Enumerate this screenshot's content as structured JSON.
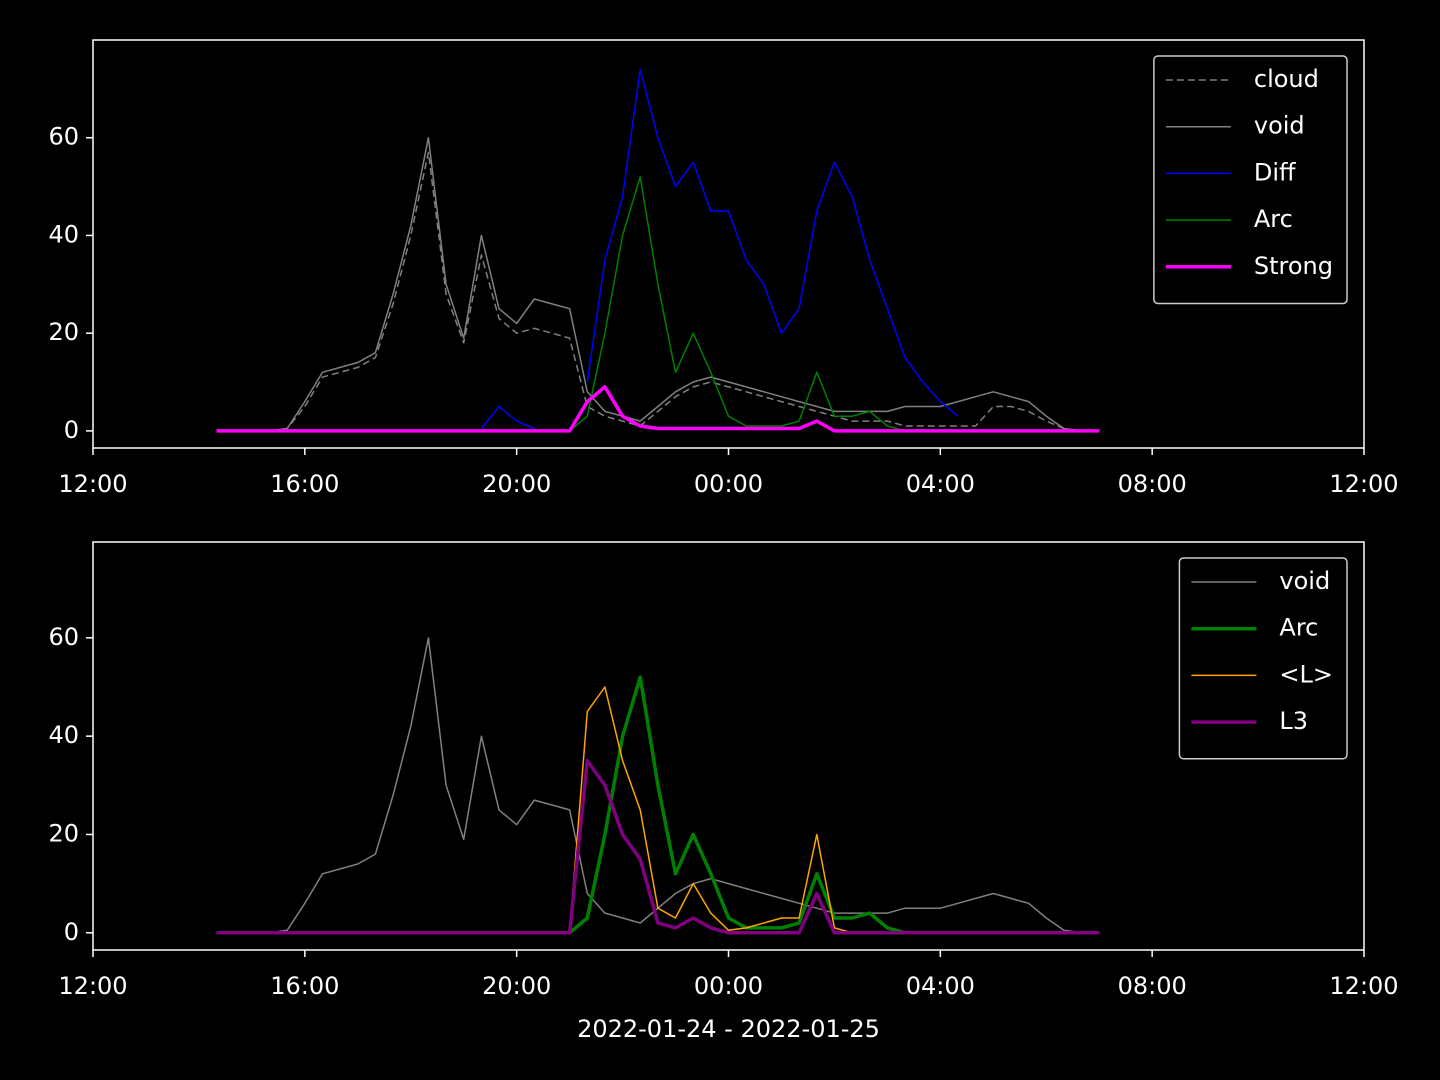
{
  "chart_data": [
    {
      "type": "line",
      "x": [
        "2022-01-24T14:20",
        "2022-01-24T14:40",
        "2022-01-24T15:00",
        "2022-01-24T15:20",
        "2022-01-24T15:40",
        "2022-01-24T16:00",
        "2022-01-24T16:20",
        "2022-01-24T16:40",
        "2022-01-24T17:00",
        "2022-01-24T17:20",
        "2022-01-24T17:40",
        "2022-01-24T18:00",
        "2022-01-24T18:20",
        "2022-01-24T18:40",
        "2022-01-24T19:00",
        "2022-01-24T19:20",
        "2022-01-24T19:40",
        "2022-01-24T20:00",
        "2022-01-24T20:20",
        "2022-01-24T20:40",
        "2022-01-24T21:00",
        "2022-01-24T21:20",
        "2022-01-24T21:40",
        "2022-01-24T22:00",
        "2022-01-24T22:20",
        "2022-01-24T22:40",
        "2022-01-24T23:00",
        "2022-01-24T23:20",
        "2022-01-24T23:40",
        "2022-01-25T00:00",
        "2022-01-25T00:20",
        "2022-01-25T00:40",
        "2022-01-25T01:00",
        "2022-01-25T01:20",
        "2022-01-25T01:40",
        "2022-01-25T02:00",
        "2022-01-25T02:20",
        "2022-01-25T02:40",
        "2022-01-25T03:00",
        "2022-01-25T03:20",
        "2022-01-25T03:40",
        "2022-01-25T04:00",
        "2022-01-25T04:20",
        "2022-01-25T04:40",
        "2022-01-25T05:00",
        "2022-01-25T05:20",
        "2022-01-25T05:40",
        "2022-01-25T06:00",
        "2022-01-25T06:20",
        "2022-01-25T06:40",
        "2022-01-25T07:00"
      ],
      "series": [
        {
          "name": "cloud",
          "color": "#808080",
          "linestyle": "dashed",
          "linewidth": 1.5,
          "values": [
            0,
            0,
            0,
            0,
            0.5,
            5,
            11,
            12,
            13,
            15,
            26,
            40,
            57,
            28,
            18,
            36,
            23,
            20,
            21,
            20,
            19,
            5,
            3,
            2,
            1,
            4,
            7,
            9,
            10,
            9,
            8,
            7,
            6,
            5,
            4,
            3,
            2,
            2,
            2,
            1,
            1,
            1,
            1,
            1,
            5,
            5,
            4,
            2,
            0.5,
            0,
            0
          ]
        },
        {
          "name": "void",
          "color": "#808080",
          "linestyle": "solid",
          "linewidth": 1.5,
          "values": [
            0,
            0,
            0,
            0,
            0.5,
            6,
            12,
            13,
            14,
            16,
            28,
            42,
            60,
            30,
            19,
            40,
            25,
            22,
            27,
            26,
            25,
            8,
            4,
            3,
            2,
            5,
            8,
            10,
            11,
            10,
            9,
            8,
            7,
            6,
            5,
            4,
            4,
            4,
            4,
            5,
            5,
            5,
            6,
            7,
            8,
            7,
            6,
            3,
            0.5,
            0,
            0
          ]
        },
        {
          "name": "Diff",
          "color": "#0000ff",
          "linestyle": "solid",
          "linewidth": 1.5,
          "values": [
            null,
            null,
            null,
            null,
            null,
            null,
            null,
            null,
            null,
            null,
            null,
            null,
            null,
            null,
            null,
            0.5,
            5,
            2,
            0.5,
            null,
            null,
            10,
            35,
            48,
            74,
            60,
            50,
            55,
            45,
            45,
            35,
            30,
            20,
            25,
            45,
            55,
            48,
            35,
            25,
            15,
            10,
            6,
            3,
            null,
            null,
            null,
            null,
            null,
            null,
            null,
            null
          ]
        },
        {
          "name": "Arc",
          "color": "#008000",
          "linestyle": "solid",
          "linewidth": 1.5,
          "values": [
            0,
            0,
            0,
            0,
            0,
            0,
            0,
            0,
            0,
            0,
            0,
            0,
            0,
            0,
            0,
            0,
            0,
            0,
            0,
            0,
            0,
            3,
            20,
            40,
            52,
            30,
            12,
            20,
            12,
            3,
            1,
            1,
            1,
            2,
            12,
            3,
            3,
            4,
            1,
            0,
            0,
            0,
            0,
            0,
            0,
            0,
            0,
            0,
            0,
            0,
            0
          ]
        },
        {
          "name": "Strong",
          "color": "#ff00ff",
          "linestyle": "solid",
          "linewidth": 3.5,
          "values": [
            0,
            0,
            0,
            0,
            0,
            0,
            0,
            0,
            0,
            0,
            0,
            0,
            0,
            0,
            0,
            0,
            0,
            0,
            0,
            0,
            0,
            6,
            9,
            3,
            1,
            0.5,
            0.5,
            0.5,
            0.5,
            0.5,
            0.5,
            0.5,
            0.5,
            0.5,
            2,
            0,
            0,
            0,
            0,
            0,
            0,
            0,
            0,
            0,
            0,
            0,
            0,
            0,
            0,
            0,
            0
          ]
        }
      ],
      "xlim": [
        "2022-01-24T12:00",
        "2022-01-25T12:00"
      ],
      "xticks": [
        {
          "value": "2022-01-24T12:00",
          "label": "12:00"
        },
        {
          "value": "2022-01-24T16:00",
          "label": "16:00"
        },
        {
          "value": "2022-01-24T20:00",
          "label": "20:00"
        },
        {
          "value": "2022-01-25T00:00",
          "label": "00:00"
        },
        {
          "value": "2022-01-25T04:00",
          "label": "04:00"
        },
        {
          "value": "2022-01-25T08:00",
          "label": "08:00"
        },
        {
          "value": "2022-01-25T12:00",
          "label": "12:00"
        }
      ],
      "ylim": [
        -3.5,
        80
      ],
      "yticks": [
        0,
        20,
        40,
        60
      ],
      "legend": "upper right"
    },
    {
      "type": "line",
      "x": [
        "2022-01-24T14:20",
        "2022-01-24T14:40",
        "2022-01-24T15:00",
        "2022-01-24T15:20",
        "2022-01-24T15:40",
        "2022-01-24T16:00",
        "2022-01-24T16:20",
        "2022-01-24T16:40",
        "2022-01-24T17:00",
        "2022-01-24T17:20",
        "2022-01-24T17:40",
        "2022-01-24T18:00",
        "2022-01-24T18:20",
        "2022-01-24T18:40",
        "2022-01-24T19:00",
        "2022-01-24T19:20",
        "2022-01-24T19:40",
        "2022-01-24T20:00",
        "2022-01-24T20:20",
        "2022-01-24T20:40",
        "2022-01-24T21:00",
        "2022-01-24T21:20",
        "2022-01-24T21:40",
        "2022-01-24T22:00",
        "2022-01-24T22:20",
        "2022-01-24T22:40",
        "2022-01-24T23:00",
        "2022-01-24T23:20",
        "2022-01-24T23:40",
        "2022-01-25T00:00",
        "2022-01-25T00:20",
        "2022-01-25T00:40",
        "2022-01-25T01:00",
        "2022-01-25T01:20",
        "2022-01-25T01:40",
        "2022-01-25T02:00",
        "2022-01-25T02:20",
        "2022-01-25T02:40",
        "2022-01-25T03:00",
        "2022-01-25T03:20",
        "2022-01-25T03:40",
        "2022-01-25T04:00",
        "2022-01-25T04:20",
        "2022-01-25T04:40",
        "2022-01-25T05:00",
        "2022-01-25T05:20",
        "2022-01-25T05:40",
        "2022-01-25T06:00",
        "2022-01-25T06:20",
        "2022-01-25T06:40",
        "2022-01-25T07:00"
      ],
      "series": [
        {
          "name": "void",
          "color": "#808080",
          "linestyle": "solid",
          "linewidth": 1.5,
          "values": [
            0,
            0,
            0,
            0,
            0.5,
            6,
            12,
            13,
            14,
            16,
            28,
            42,
            60,
            30,
            19,
            40,
            25,
            22,
            27,
            26,
            25,
            8,
            4,
            3,
            2,
            5,
            8,
            10,
            11,
            10,
            9,
            8,
            7,
            6,
            5,
            4,
            4,
            4,
            4,
            5,
            5,
            5,
            6,
            7,
            8,
            7,
            6,
            3,
            0.5,
            0,
            0
          ]
        },
        {
          "name": "Arc",
          "color": "#008000",
          "linestyle": "solid",
          "linewidth": 3.5,
          "values": [
            0,
            0,
            0,
            0,
            0,
            0,
            0,
            0,
            0,
            0,
            0,
            0,
            0,
            0,
            0,
            0,
            0,
            0,
            0,
            0,
            0,
            3,
            20,
            40,
            52,
            30,
            12,
            20,
            12,
            3,
            1,
            1,
            1,
            2,
            12,
            3,
            3,
            4,
            1,
            0,
            0,
            0,
            0,
            0,
            0,
            0,
            0,
            0,
            0,
            0,
            0
          ]
        },
        {
          "name": "<L>",
          "color": "#ffa500",
          "linestyle": "solid",
          "linewidth": 1.5,
          "values": [
            0,
            0,
            0,
            0,
            0,
            0,
            0,
            0,
            0,
            0,
            0,
            0,
            0,
            0,
            0,
            0,
            0,
            0,
            0,
            0,
            0,
            45,
            50,
            35,
            25,
            5,
            3,
            10,
            4,
            0.5,
            1,
            2,
            3,
            3,
            20,
            1,
            0,
            0,
            0,
            0,
            0,
            0,
            0,
            0,
            0,
            0,
            0,
            0,
            0,
            0,
            0
          ]
        },
        {
          "name": "L3",
          "color": "#800080",
          "linestyle": "solid",
          "linewidth": 3.5,
          "values": [
            0,
            0,
            0,
            0,
            0,
            0,
            0,
            0,
            0,
            0,
            0,
            0,
            0,
            0,
            0,
            0,
            0,
            0,
            0,
            0,
            0,
            35,
            30,
            20,
            15,
            2,
            1,
            3,
            1,
            0,
            0,
            0,
            0,
            0,
            8,
            0,
            0,
            0,
            0,
            0,
            0,
            0,
            0,
            0,
            0,
            0,
            0,
            0,
            0,
            0,
            0
          ]
        }
      ],
      "xlim": [
        "2022-01-24T12:00",
        "2022-01-25T12:00"
      ],
      "xticks": [
        {
          "value": "2022-01-24T12:00",
          "label": "12:00"
        },
        {
          "value": "2022-01-24T16:00",
          "label": "16:00"
        },
        {
          "value": "2022-01-24T20:00",
          "label": "20:00"
        },
        {
          "value": "2022-01-25T00:00",
          "label": "00:00"
        },
        {
          "value": "2022-01-25T04:00",
          "label": "04:00"
        },
        {
          "value": "2022-01-25T08:00",
          "label": "08:00"
        },
        {
          "value": "2022-01-25T12:00",
          "label": "12:00"
        }
      ],
      "ylim": [
        -3.5,
        79.5
      ],
      "yticks": [
        0,
        20,
        40,
        60
      ],
      "legend": "upper right",
      "xlabel": "2022-01-24 - 2022-01-25"
    }
  ]
}
